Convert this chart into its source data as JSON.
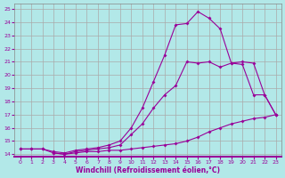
{
  "xlabel": "Windchill (Refroidissement éolien,°C)",
  "bg_color": "#b2e8e8",
  "line_color": "#990099",
  "grid_color": "#aaaaaa",
  "xlim": [
    -0.5,
    23.5
  ],
  "ylim": [
    13.8,
    25.4
  ],
  "xticks": [
    0,
    1,
    2,
    3,
    4,
    5,
    6,
    7,
    8,
    9,
    10,
    11,
    12,
    13,
    14,
    15,
    16,
    17,
    18,
    19,
    20,
    21,
    22,
    23
  ],
  "yticks": [
    14,
    15,
    16,
    17,
    18,
    19,
    20,
    21,
    22,
    23,
    24,
    25
  ],
  "line1_x": [
    0,
    1,
    2,
    3,
    4,
    5,
    6,
    7,
    8,
    9,
    10,
    11,
    12,
    13,
    14,
    15,
    16,
    17,
    18,
    19,
    20,
    21,
    22,
    23
  ],
  "line1_y": [
    14.4,
    14.4,
    14.4,
    14.1,
    14.0,
    14.1,
    14.2,
    14.2,
    14.3,
    14.3,
    14.4,
    14.5,
    14.6,
    14.7,
    14.8,
    15.0,
    15.3,
    15.7,
    16.0,
    16.3,
    16.5,
    16.7,
    16.8,
    17.0
  ],
  "line2_x": [
    3,
    4,
    5,
    6,
    7,
    8,
    9,
    10,
    11,
    12,
    13,
    14,
    15,
    16,
    17,
    18,
    19,
    20,
    21,
    22,
    23
  ],
  "line2_y": [
    14.1,
    14.0,
    14.2,
    14.3,
    14.4,
    14.5,
    14.7,
    15.5,
    16.3,
    17.5,
    18.5,
    19.2,
    21.0,
    20.9,
    21.0,
    20.6,
    20.9,
    21.0,
    20.9,
    18.5,
    17.0
  ],
  "line3_x": [
    0,
    1,
    2,
    3,
    4,
    5,
    6,
    7,
    8,
    9,
    10,
    11,
    12,
    13,
    14,
    15,
    16,
    17,
    18,
    19,
    20,
    21,
    22,
    23
  ],
  "line3_y": [
    14.4,
    14.4,
    14.4,
    14.2,
    14.1,
    14.3,
    14.4,
    14.5,
    14.7,
    15.0,
    16.0,
    17.5,
    19.5,
    21.5,
    23.8,
    23.9,
    24.8,
    24.3,
    23.5,
    20.9,
    20.8,
    18.5,
    18.5,
    17.0
  ]
}
